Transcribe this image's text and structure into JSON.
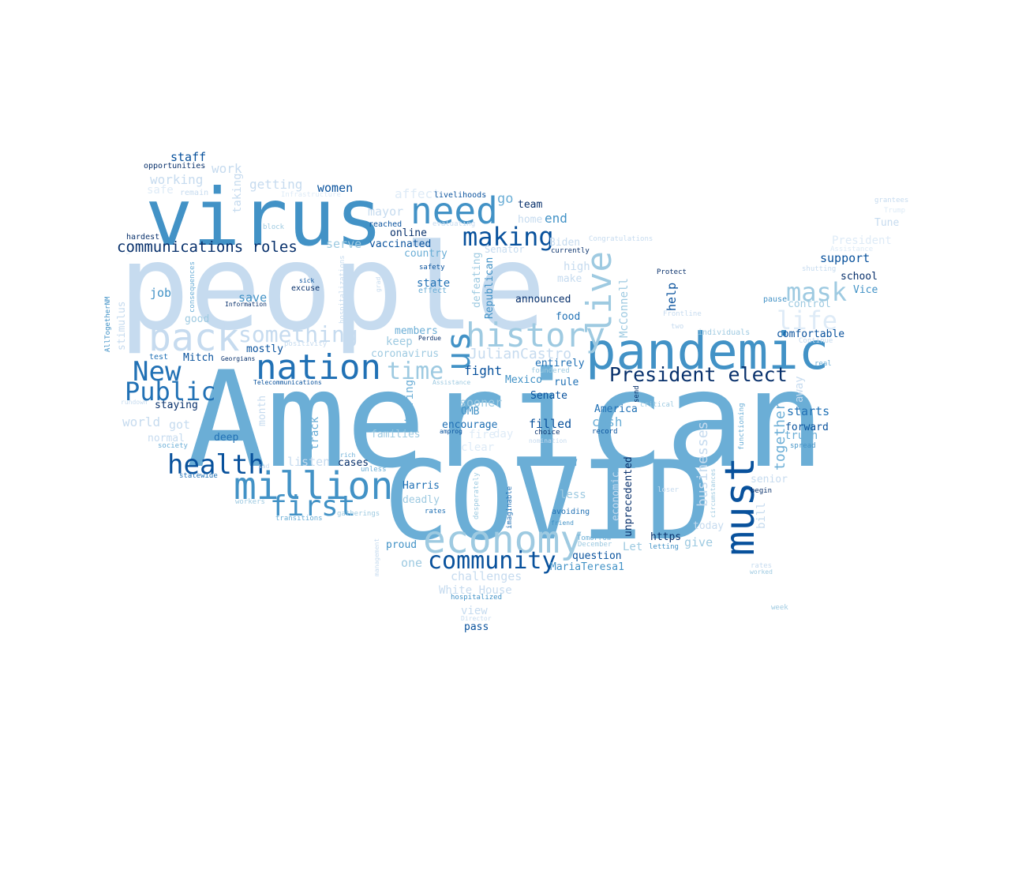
{
  "palette": {
    "c1": "#c6dbef",
    "c2": "#9ecae1",
    "c3": "#6baed6",
    "c4": "#4292c6",
    "c5": "#2171b5",
    "c6": "#08519c",
    "c7": "#08306b",
    "c8": "#deebf7"
  },
  "words": [
    {
      "text": "American",
      "color": "c3"
    },
    {
      "text": "COVID",
      "color": "c3"
    },
    {
      "text": "people",
      "color": "c1"
    },
    {
      "text": "virus",
      "color": "c4"
    },
    {
      "text": "pandemic",
      "color": "c4"
    },
    {
      "text": "need",
      "color": "c4"
    },
    {
      "text": "must",
      "color": "c6"
    },
    {
      "text": "economy",
      "color": "c2"
    },
    {
      "text": "nation",
      "color": "c5"
    },
    {
      "text": "back",
      "color": "c1"
    },
    {
      "text": "million",
      "color": "c4"
    },
    {
      "text": "history",
      "color": "c2"
    },
    {
      "text": "live",
      "color": "c2"
    },
    {
      "text": "us",
      "color": "c4"
    },
    {
      "text": "health",
      "color": "c6"
    },
    {
      "text": "community",
      "color": "c6"
    },
    {
      "text": "first",
      "color": "c4"
    },
    {
      "text": "making",
      "color": "c6"
    },
    {
      "text": "President elect",
      "color": "c7"
    },
    {
      "text": "New",
      "color": "c5"
    },
    {
      "text": "Public",
      "color": "c5"
    },
    {
      "text": "mask",
      "color": "c2"
    },
    {
      "text": "life",
      "color": "c8"
    },
    {
      "text": "something",
      "color": "c1"
    },
    {
      "text": "time",
      "color": "c2"
    },
    {
      "text": "businesses",
      "color": "c1"
    },
    {
      "text": "communications roles",
      "color": "c7"
    },
    {
      "text": "JulianCastro",
      "color": "c1"
    },
    {
      "text": "together",
      "color": "c3"
    },
    {
      "text": "staff",
      "color": "c6"
    },
    {
      "text": "opportunities",
      "color": "c7"
    },
    {
      "text": "work",
      "color": "c1"
    },
    {
      "text": "working",
      "color": "c1"
    },
    {
      "text": "safe",
      "color": "c8"
    },
    {
      "text": "remain",
      "color": "c1"
    },
    {
      "text": "taking",
      "color": "c1"
    },
    {
      "text": "getting",
      "color": "c1"
    },
    {
      "text": "Infrastructure",
      "color": "c8"
    },
    {
      "text": "women",
      "color": "c6"
    },
    {
      "text": "affect",
      "color": "c8"
    },
    {
      "text": "livelihoods",
      "color": "c6"
    },
    {
      "text": "go",
      "color": "c3"
    },
    {
      "text": "team",
      "color": "c7"
    },
    {
      "text": "mayor",
      "color": "c1"
    },
    {
      "text": "reached",
      "color": "c6"
    },
    {
      "text": "evaluating",
      "color": "c1"
    },
    {
      "text": "home",
      "color": "c1"
    },
    {
      "text": "end",
      "color": "c4"
    },
    {
      "text": "grantees",
      "color": "c1"
    },
    {
      "text": "Trump",
      "color": "c8"
    },
    {
      "text": "Tune",
      "color": "c1"
    },
    {
      "text": "hardest",
      "color": "c7"
    },
    {
      "text": "online",
      "color": "c7"
    },
    {
      "text": "Congratulations",
      "color": "c1"
    },
    {
      "text": "President",
      "color": "c8"
    },
    {
      "text": "serve",
      "color": "c2"
    },
    {
      "text": "vaccinated",
      "color": "c6"
    },
    {
      "text": "Biden",
      "color": "c1"
    },
    {
      "text": "Senator",
      "color": "c1"
    },
    {
      "text": "currently",
      "color": "c7"
    },
    {
      "text": "Assistance",
      "color": "c8"
    },
    {
      "text": "support",
      "color": "c6"
    },
    {
      "text": "country",
      "color": "c3"
    },
    {
      "text": "high",
      "color": "c1"
    },
    {
      "text": "shutting",
      "color": "c1"
    },
    {
      "text": "vaccine",
      "color": "c4"
    },
    {
      "text": "stimulus",
      "color": "c1"
    },
    {
      "text": "consequences",
      "color": "c3"
    },
    {
      "text": "safety",
      "color": "c6"
    },
    {
      "text": "Protect",
      "color": "c7"
    },
    {
      "text": "school",
      "color": "c7"
    },
    {
      "text": "sick",
      "color": "c6"
    },
    {
      "text": "hospitalizations",
      "color": "c1"
    },
    {
      "text": "grad",
      "color": "c1"
    },
    {
      "text": "defeating",
      "color": "c2"
    },
    {
      "text": "Republican",
      "color": "c4"
    },
    {
      "text": "make",
      "color": "c1"
    },
    {
      "text": "Vice",
      "color": "c4"
    },
    {
      "text": "state",
      "color": "c5"
    },
    {
      "text": "excuse",
      "color": "c7"
    },
    {
      "text": "effect",
      "color": "c3"
    },
    {
      "text": "job",
      "color": "c4"
    },
    {
      "text": "McConnell",
      "color": "c2"
    },
    {
      "text": "help",
      "color": "c6"
    },
    {
      "text": "pause",
      "color": "c4"
    },
    {
      "text": "save",
      "color": "c4"
    },
    {
      "text": "announced",
      "color": "c7"
    },
    {
      "text": "control",
      "color": "c2"
    },
    {
      "text": "AllTogetherNM",
      "color": "c4"
    },
    {
      "text": "Information",
      "color": "c7"
    },
    {
      "text": "food",
      "color": "c5"
    },
    {
      "text": "Frontline",
      "color": "c1"
    },
    {
      "text": "good",
      "color": "c2"
    },
    {
      "text": "positivity",
      "color": "c1"
    },
    {
      "text": "members",
      "color": "c3"
    },
    {
      "text": "Perdue",
      "color": "c7"
    },
    {
      "text": "two",
      "color": "c1"
    },
    {
      "text": "individuals",
      "color": "c2"
    },
    {
      "text": "comfortable",
      "color": "c6"
    },
    {
      "text": "mostly",
      "color": "c6"
    },
    {
      "text": "keep",
      "color": "c2"
    },
    {
      "text": "test",
      "color": "c5"
    },
    {
      "text": "Mitch",
      "color": "c6"
    },
    {
      "text": "Georgians",
      "color": "c7"
    },
    {
      "text": "coronavirus",
      "color": "c2"
    },
    {
      "text": "Continue",
      "color": "c1"
    },
    {
      "text": "entirely",
      "color": "c5"
    },
    {
      "text": "real",
      "color": "c3"
    },
    {
      "text": "fight",
      "color": "c6"
    },
    {
      "text": "foundered",
      "color": "c2"
    },
    {
      "text": "rule",
      "color": "c5"
    },
    {
      "text": "Mexico",
      "color": "c4"
    },
    {
      "text": "Telecommunications",
      "color": "c6"
    },
    {
      "text": "Assistance",
      "color": "c2"
    },
    {
      "text": "send",
      "color": "c7"
    },
    {
      "text": "away",
      "color": "c1"
    },
    {
      "text": "staying",
      "color": "c7"
    },
    {
      "text": "rundown",
      "color": "c1"
    },
    {
      "text": "month",
      "color": "c1"
    },
    {
      "text": "Wearing",
      "color": "c3"
    },
    {
      "text": "Senate",
      "color": "c6"
    },
    {
      "text": "sooner",
      "color": "c2"
    },
    {
      "text": "America",
      "color": "c5"
    },
    {
      "text": "critical",
      "color": "c2"
    },
    {
      "text": "functioning",
      "color": "c3"
    },
    {
      "text": "starts",
      "color": "c5"
    },
    {
      "text": "OMB",
      "color": "c4"
    },
    {
      "text": "world",
      "color": "c1"
    },
    {
      "text": "got",
      "color": "c1"
    },
    {
      "text": "encourage",
      "color": "c5"
    },
    {
      "text": "filled",
      "color": "c6"
    },
    {
      "text": "cash",
      "color": "c3"
    },
    {
      "text": "forward",
      "color": "c6"
    },
    {
      "text": "normal",
      "color": "c1"
    },
    {
      "text": "deep",
      "color": "c5"
    },
    {
      "text": "track",
      "color": "c3"
    },
    {
      "text": "families",
      "color": "c2"
    },
    {
      "text": "amprog",
      "color": "c6"
    },
    {
      "text": "fire",
      "color": "c8"
    },
    {
      "text": "day",
      "color": "c8"
    },
    {
      "text": "choice",
      "color": "c7"
    },
    {
      "text": "record",
      "color": "c6"
    },
    {
      "text": "truth",
      "color": "c3"
    },
    {
      "text": "society",
      "color": "c3"
    },
    {
      "text": "nomination",
      "color": "c1"
    },
    {
      "text": "spread",
      "color": "c4"
    },
    {
      "text": "clear",
      "color": "c8"
    },
    {
      "text": "rich",
      "color": "c3"
    },
    {
      "text": "listen",
      "color": "c1"
    },
    {
      "text": "cases",
      "color": "c7"
    },
    {
      "text": "senior",
      "color": "c1"
    },
    {
      "text": "statewide",
      "color": "c5"
    },
    {
      "text": "sad",
      "color": "c1"
    },
    {
      "text": "unless",
      "color": "c3"
    },
    {
      "text": "unprecedented",
      "color": "c7"
    },
    {
      "text": "economic",
      "color": "c1"
    },
    {
      "text": "workers",
      "color": "c2"
    },
    {
      "text": "Harris",
      "color": "c5"
    },
    {
      "text": "desperately",
      "color": "c2"
    },
    {
      "text": "loser",
      "color": "c1"
    },
    {
      "text": "begin",
      "color": "c7"
    },
    {
      "text": "circumstances",
      "color": "c2"
    },
    {
      "text": "deadly",
      "color": "c2"
    },
    {
      "text": "less",
      "color": "c2"
    },
    {
      "text": "bill",
      "color": "c1"
    },
    {
      "text": "transitions",
      "color": "c3"
    },
    {
      "text": "gatherings",
      "color": "c2"
    },
    {
      "text": "rates",
      "color": "c5"
    },
    {
      "text": "imaginable",
      "color": "c5"
    },
    {
      "text": "avoiding",
      "color": "c5"
    },
    {
      "text": "friend",
      "color": "c4"
    },
    {
      "text": "today",
      "color": "c1"
    },
    {
      "text": "Tomorrow",
      "color": "c3"
    },
    {
      "text": "https",
      "color": "c7"
    },
    {
      "text": "December",
      "color": "c2"
    },
    {
      "text": "give",
      "color": "c2"
    },
    {
      "text": "proud",
      "color": "c4"
    },
    {
      "text": "Let",
      "color": "c2"
    },
    {
      "text": "letting",
      "color": "c4"
    },
    {
      "text": "management",
      "color": "c1"
    },
    {
      "text": "rates",
      "color": "c1"
    },
    {
      "text": "worked",
      "color": "c2"
    },
    {
      "text": "one",
      "color": "c2"
    },
    {
      "text": "question",
      "color": "c6"
    },
    {
      "text": "MariaTeresa1",
      "color": "c4"
    },
    {
      "text": "challenges",
      "color": "c1"
    },
    {
      "text": "White House",
      "color": "c1"
    },
    {
      "text": "hospitalized",
      "color": "c4"
    },
    {
      "text": "week",
      "color": "c2"
    },
    {
      "text": "view",
      "color": "c1"
    },
    {
      "text": "Director",
      "color": "c1"
    },
    {
      "text": "pass",
      "color": "c6"
    },
    {
      "text": "block",
      "color": "c2"
    },
    {
      "text": "vaccine",
      "color": "c2"
    },
    {
      "text": "nearly",
      "color": "c8"
    },
    {
      "text": "President",
      "color": "c8"
    }
  ]
}
